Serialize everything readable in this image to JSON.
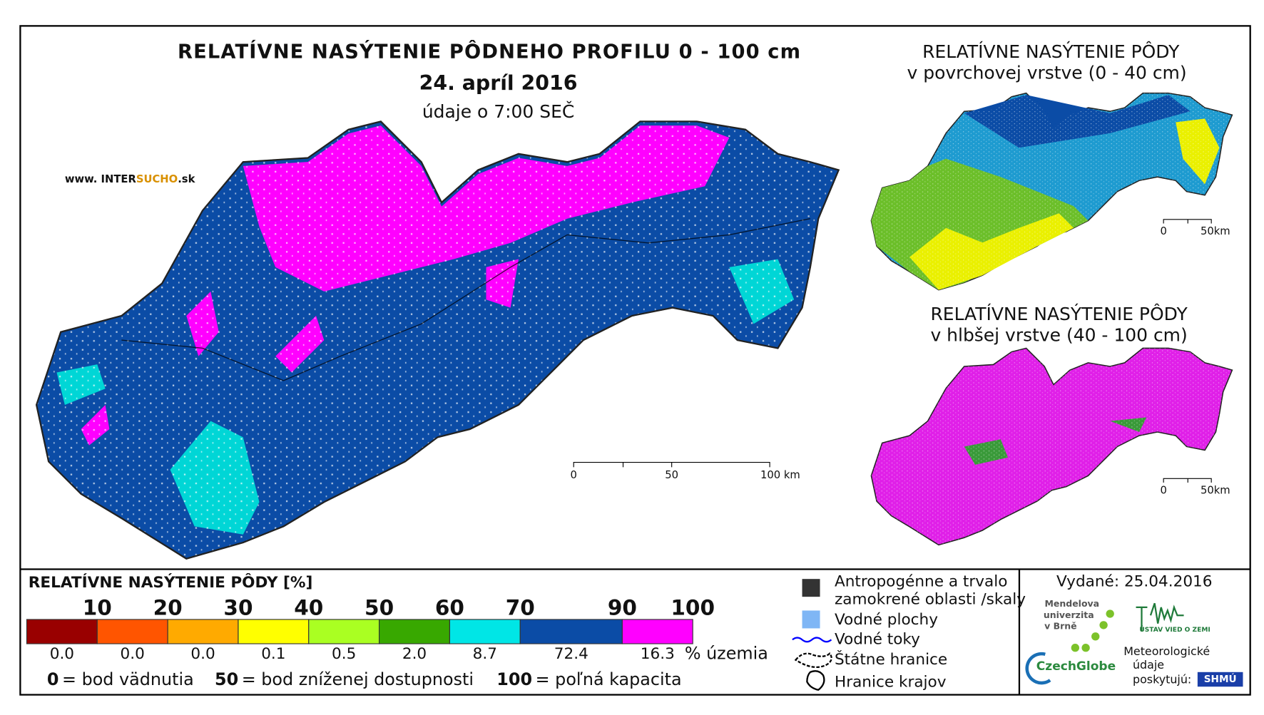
{
  "title": "RELATÍVNE NASÝTENIE PÔDNEHO PROFILU 0 - 100 cm",
  "date": "24. apríl 2016",
  "data_time": "údaje o 7:00 SEČ",
  "website": {
    "prefix": "www. INTER",
    "highlight": "SUCHO",
    "suffix": ".sk"
  },
  "main_scale_labels": [
    "0",
    "50",
    "100 km"
  ],
  "inset_top": {
    "title": "RELATÍVNE NASÝTENIE PÔDY",
    "subtitle": "v povrchovej vrstve (0 - 40 cm)",
    "scale_labels": [
      "0",
      "50km"
    ]
  },
  "inset_bottom": {
    "title": "RELATÍVNE NASÝTENIE PÔDY",
    "subtitle": "v hlbšej vrstve (40 - 100 cm)",
    "scale_labels": [
      "0",
      "50km"
    ]
  },
  "legend": {
    "title": "RELATÍVNE NASÝTENIE PÔDY [%]",
    "thresholds": [
      10,
      20,
      30,
      40,
      50,
      60,
      70,
      90,
      100
    ],
    "colors": [
      "#990000",
      "#ff5500",
      "#ffaa00",
      "#ffff00",
      "#aaff22",
      "#38a800",
      "#00e6e6",
      "#0b4ca6",
      "#ff00ff"
    ],
    "territory_share": [
      "0.0",
      "0.0",
      "0.0",
      "0.1",
      "0.5",
      "2.0",
      "8.7",
      "72.4",
      "16.3"
    ],
    "share_unit": "% územia",
    "reference": [
      {
        "number": 0,
        "text": "= bod vädnutia"
      },
      {
        "number": 50,
        "text": "= bod zníženej dostupnosti"
      },
      {
        "number": 100,
        "text": "= poľná kapacita"
      }
    ]
  },
  "symbols": [
    {
      "lines": [
        "Antropogénne a trvalo",
        "zamokrené oblasti /skaly"
      ]
    },
    {
      "lines": [
        "Vodné plochy"
      ]
    },
    {
      "lines": [
        "Vodné toky"
      ]
    },
    {
      "lines": [
        "Štátne hranice"
      ]
    },
    {
      "lines": [
        "Hranice krajov"
      ]
    }
  ],
  "issued": "Vydané: 25.04.2016",
  "logos": {
    "mendel": [
      "Mendelova",
      "univerzita",
      "v Brně"
    ],
    "czechglobe": "CzechGlobe",
    "ustav": "ÚSTAV VIED O ZEMI",
    "meteo": [
      "Meteorologické",
      "údaje",
      "poskytujú:"
    ],
    "shmu": "SHMÚ"
  }
}
